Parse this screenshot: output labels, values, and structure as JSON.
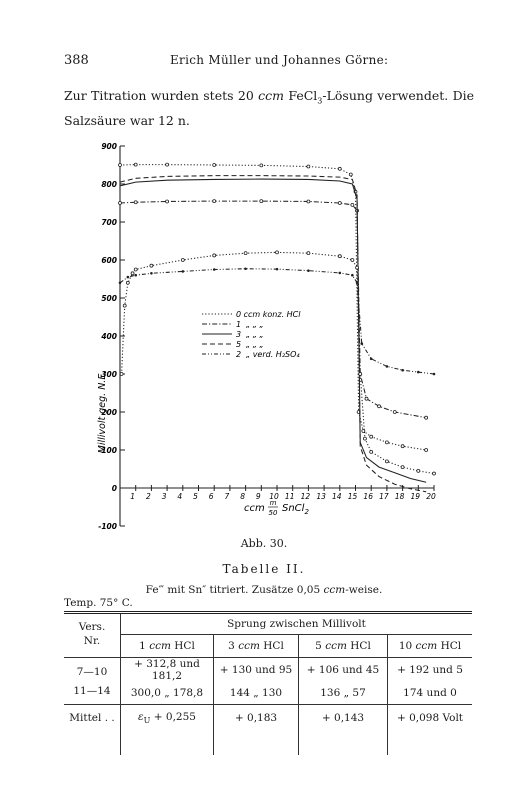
{
  "header": {
    "page_number": "388",
    "running_title": "Erich Müller und Johannes Görne:"
  },
  "intro": {
    "line1_a": "Zur Titration wurden stets 20",
    "line1_unit": "ccm",
    "line1_b": "FeCl",
    "line1_sub": "3",
    "line1_c": "-Lösung verwendet. Die",
    "line2": "Salzsäure war 12 n."
  },
  "chart_data": {
    "type": "line",
    "ylabel": "Millivolt geg. N.E.",
    "xlabel_a": "ccm",
    "xlabel_frac_num": "m",
    "xlabel_frac_den": "50",
    "xlabel_b": "SnCl",
    "xlabel_sub": "2",
    "ylim": [
      -100,
      900
    ],
    "xlim": [
      0,
      20
    ],
    "yticks": [
      "900",
      "800",
      "700",
      "600",
      "500",
      "400",
      "300",
      "200",
      "100",
      "0",
      "-100"
    ],
    "xticks": [
      "1",
      "2",
      "3",
      "4",
      "5",
      "6",
      "7",
      "8",
      "9",
      "10",
      "11",
      "12",
      "13",
      "14",
      "15",
      "16",
      "17",
      "18",
      "19",
      "20"
    ],
    "legend": [
      {
        "style": "dotted",
        "text_a": "0 ccm konz. HCl",
        "text_b": ""
      },
      {
        "style": "dashdot",
        "text_a": "1",
        "text_b": "„   „   „"
      },
      {
        "style": "solid",
        "text_a": "3",
        "text_b": "„   „   „"
      },
      {
        "style": "dashed",
        "text_a": "5",
        "text_b": "„   „   „"
      },
      {
        "style": "dashdotdot",
        "text_a": "2",
        "text_b": "„ verd. H₂SO₄"
      }
    ],
    "series": [
      {
        "style": "dotted",
        "marker": "circle",
        "x": [
          0,
          1,
          3,
          6,
          9,
          12,
          14,
          14.7,
          15,
          15.2,
          15.5,
          16,
          17,
          18,
          19.5
        ],
        "y": [
          850,
          851,
          851,
          850,
          849,
          846,
          840,
          825,
          780,
          200,
          150,
          135,
          120,
          110,
          100
        ]
      },
      {
        "style": "dashdot",
        "marker": "circle",
        "x": [
          0,
          1,
          3,
          6,
          9,
          12,
          14,
          14.8,
          15.1,
          15.3,
          15.7,
          16.5,
          17.5,
          19.5
        ],
        "y": [
          750,
          752,
          754,
          755,
          755,
          754,
          750,
          745,
          730,
          300,
          235,
          215,
          200,
          185
        ]
      },
      {
        "style": "solid",
        "marker": "none",
        "x": [
          0,
          1,
          3,
          6,
          9,
          12,
          14,
          14.8,
          15.1,
          15.3,
          15.7,
          16.5,
          17.5,
          18.5,
          19.5
        ],
        "y": [
          795,
          805,
          810,
          812,
          813,
          812,
          808,
          800,
          760,
          120,
          80,
          55,
          40,
          25,
          15
        ]
      },
      {
        "style": "dashed",
        "marker": "none",
        "x": [
          0,
          1,
          3,
          6,
          9,
          12,
          14,
          14.8,
          15.1,
          15.3,
          15.7,
          16.5,
          17.5,
          18.5,
          19.5
        ],
        "y": [
          805,
          815,
          820,
          822,
          822,
          821,
          818,
          812,
          770,
          110,
          60,
          30,
          10,
          -2,
          -10
        ]
      },
      {
        "style": "dashdotdot",
        "marker": "dot",
        "x": [
          0,
          0.5,
          1,
          2,
          4,
          6,
          8,
          10,
          12,
          14,
          14.8,
          15.1,
          15.4,
          16,
          17,
          18,
          19,
          20
        ],
        "y": [
          540,
          555,
          560,
          565,
          570,
          575,
          577,
          576,
          572,
          566,
          560,
          540,
          380,
          340,
          320,
          310,
          305,
          300
        ]
      },
      {
        "style": "dotted",
        "marker": "circle",
        "x": [
          0.1,
          0.3,
          0.5,
          0.8,
          1,
          2,
          4,
          6,
          8,
          10,
          12,
          14,
          14.8,
          15.1,
          15.3,
          15.6,
          16,
          17,
          18,
          19,
          20
        ],
        "y": [
          300,
          480,
          540,
          565,
          575,
          585,
          600,
          612,
          618,
          620,
          618,
          610,
          600,
          580,
          300,
          130,
          95,
          70,
          55,
          45,
          38
        ]
      }
    ]
  },
  "figure": {
    "caption": "Abb. 30."
  },
  "table": {
    "title": "Tabelle II.",
    "subtitle_a": "Fe‴ mit Sn″ titriert. Zusätze 0,05",
    "subtitle_unit": "ccm",
    "subtitle_b": "-weise.",
    "temp": "Temp. 75° C.",
    "head_vers": "Vers.",
    "head_nr": "Nr.",
    "head_sprung": "Sprung zwischen Millivolt",
    "columns": [
      {
        "num": "1",
        "unit": "ccm",
        "acid": "HCl"
      },
      {
        "num": "3",
        "unit": "ccm",
        "acid": "HCl"
      },
      {
        "num": "5",
        "unit": "ccm",
        "acid": "HCl"
      },
      {
        "num": "10",
        "unit": "ccm",
        "acid": "HCl"
      }
    ],
    "rows": [
      {
        "nr": "7—10",
        "cells": [
          "+ 312,8 und 181,2",
          "+ 130 und 95",
          "+ 106 und 45",
          "+ 192 und 5"
        ]
      },
      {
        "nr": "11—14",
        "cells": [
          "300,0  „  178,8",
          "144  „  130",
          "136  „  57",
          "174 und 0"
        ]
      }
    ],
    "mittel": {
      "label": "Mittel . .",
      "c1_sym": "ε",
      "c1_sub": "U",
      "c1_val": "+ 0,255",
      "c2": "+ 0,183",
      "c3": "+ 0,143",
      "c4": "+ 0,098 Volt"
    }
  }
}
